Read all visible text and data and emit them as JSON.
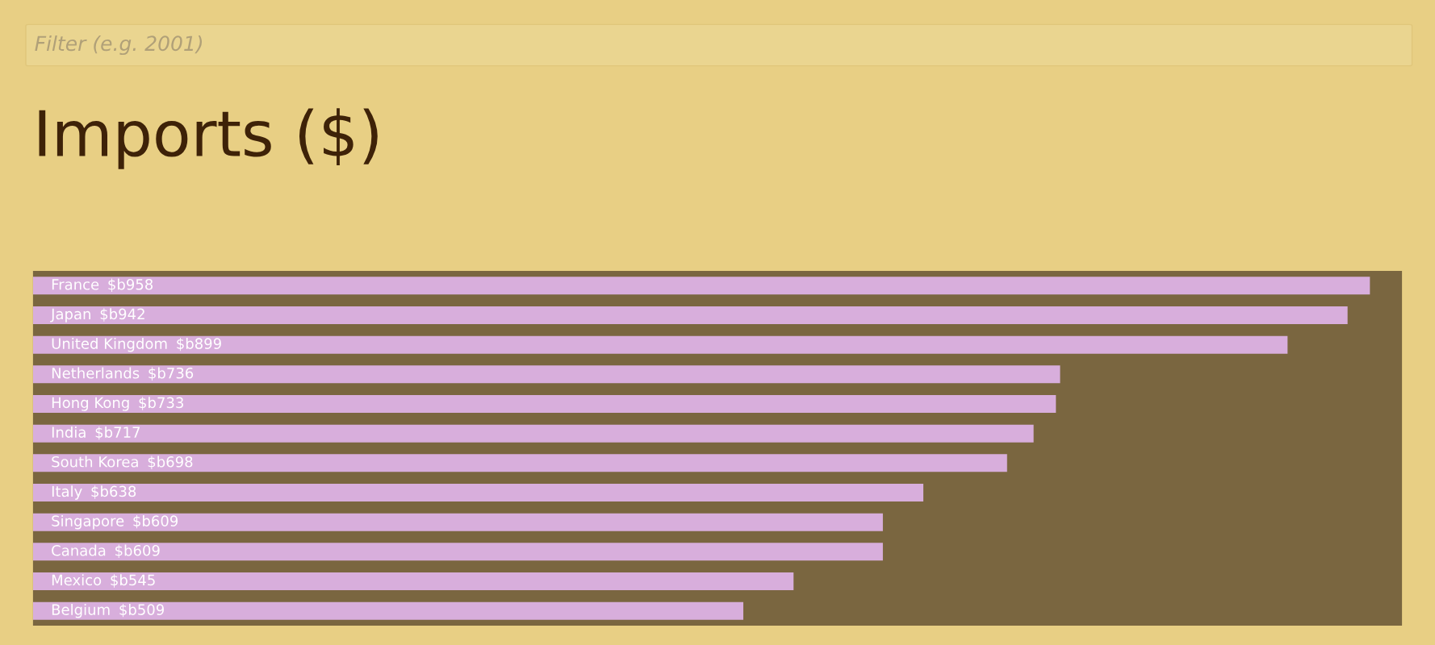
{
  "chart_data": {
    "type": "bar",
    "orientation": "horizontal",
    "title": "Imports ($)",
    "annotations": [
      "Filter (e.g. 2001)"
    ],
    "categories": [
      "France",
      "Japan",
      "United Kingdom",
      "Netherlands",
      "Hong Kong",
      "India",
      "South Korea",
      "Italy",
      "Singapore",
      "Canada",
      "Mexico",
      "Belgium"
    ],
    "values": [
      958,
      942,
      899,
      736,
      733,
      717,
      698,
      638,
      609,
      609,
      545,
      509
    ],
    "value_labels": [
      "$b958",
      "$b942",
      "$b899",
      "$b736",
      "$b733",
      "$b717",
      "$b698",
      "$b638",
      "$b609",
      "$b609",
      "$b545",
      "$b509"
    ],
    "color": "#d8aedc"
  }
}
